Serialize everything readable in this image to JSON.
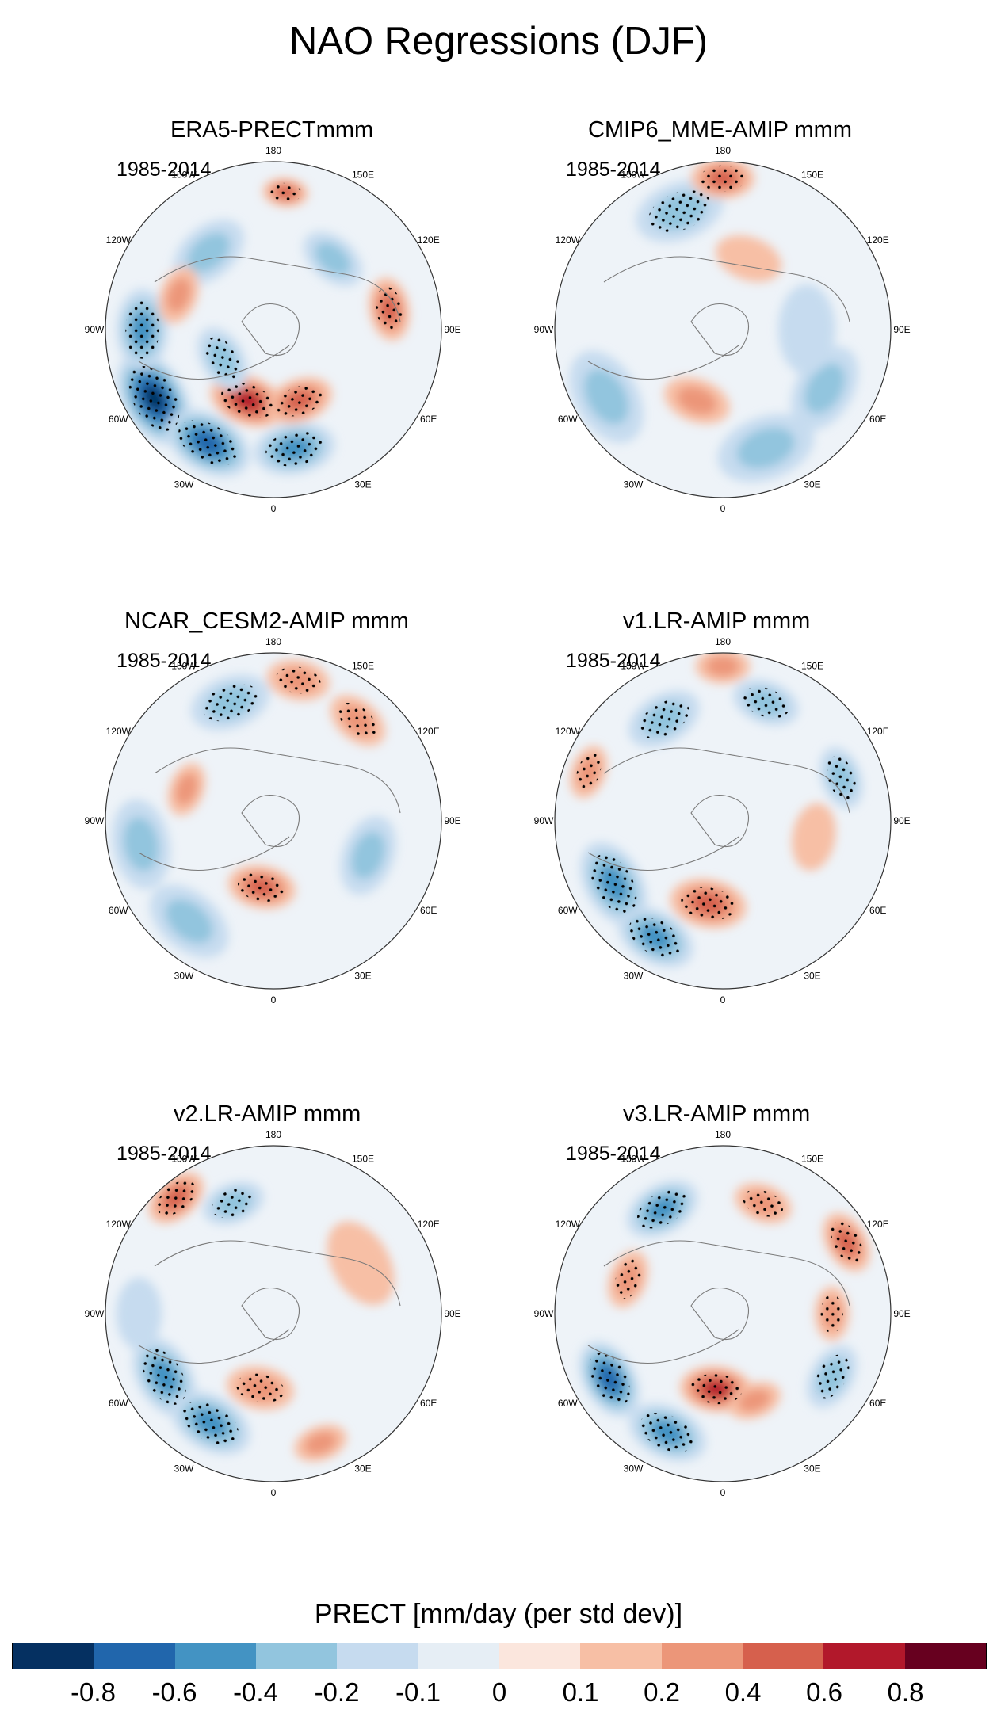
{
  "title": "NAO Regressions (DJF)",
  "panels": [
    {
      "title": "ERA5-PRECTmmm",
      "period": "1985-2014",
      "blobs": [
        {
          "lon": 300,
          "dist": 0.82,
          "val": -0.85,
          "r": 0.22
        },
        {
          "lon": 330,
          "dist": 0.78,
          "val": -0.7,
          "r": 0.2
        },
        {
          "lon": 270,
          "dist": 0.78,
          "val": -0.45,
          "r": 0.18
        },
        {
          "lon": 10,
          "dist": 0.72,
          "val": -0.5,
          "r": 0.18
        },
        {
          "lon": 340,
          "dist": 0.45,
          "val": 0.75,
          "r": 0.17
        },
        {
          "lon": 20,
          "dist": 0.45,
          "val": 0.55,
          "r": 0.15
        },
        {
          "lon": 300,
          "dist": 0.35,
          "val": -0.3,
          "r": 0.15
        },
        {
          "lon": 175,
          "dist": 0.82,
          "val": 0.5,
          "r": 0.1
        },
        {
          "lon": 100,
          "dist": 0.7,
          "val": 0.4,
          "r": 0.14
        },
        {
          "lon": 140,
          "dist": 0.55,
          "val": -0.25,
          "r": 0.15
        },
        {
          "lon": 220,
          "dist": 0.6,
          "val": -0.2,
          "r": 0.18
        },
        {
          "lon": 250,
          "dist": 0.6,
          "val": 0.25,
          "r": 0.13
        }
      ]
    },
    {
      "title": "CMIP6_MME-AMIP  mmm",
      "period": "1985-2014",
      "blobs": [
        {
          "lon": 200,
          "dist": 0.75,
          "val": -0.35,
          "r": 0.2
        },
        {
          "lon": 180,
          "dist": 0.9,
          "val": 0.4,
          "r": 0.14
        },
        {
          "lon": 300,
          "dist": 0.8,
          "val": -0.25,
          "r": 0.22
        },
        {
          "lon": 20,
          "dist": 0.75,
          "val": -0.2,
          "r": 0.22
        },
        {
          "lon": 60,
          "dist": 0.7,
          "val": -0.2,
          "r": 0.2
        },
        {
          "lon": 340,
          "dist": 0.45,
          "val": 0.25,
          "r": 0.15
        },
        {
          "lon": 160,
          "dist": 0.45,
          "val": 0.15,
          "r": 0.15
        },
        {
          "lon": 90,
          "dist": 0.5,
          "val": -0.12,
          "r": 0.2
        }
      ]
    },
    {
      "title": "NCAR_CESM2-AMIP  mmm",
      "period": "1985-2014",
      "blobs": [
        {
          "lon": 200,
          "dist": 0.75,
          "val": -0.35,
          "r": 0.18
        },
        {
          "lon": 170,
          "dist": 0.85,
          "val": 0.35,
          "r": 0.14
        },
        {
          "lon": 140,
          "dist": 0.78,
          "val": 0.3,
          "r": 0.14
        },
        {
          "lon": 280,
          "dist": 0.8,
          "val": -0.25,
          "r": 0.2
        },
        {
          "lon": 320,
          "dist": 0.78,
          "val": -0.2,
          "r": 0.2
        },
        {
          "lon": 350,
          "dist": 0.4,
          "val": 0.4,
          "r": 0.15
        },
        {
          "lon": 250,
          "dist": 0.55,
          "val": 0.2,
          "r": 0.12
        },
        {
          "lon": 70,
          "dist": 0.6,
          "val": -0.2,
          "r": 0.18
        }
      ]
    },
    {
      "title": "v1.LR-AMIP  mmm",
      "period": "1985-2014",
      "blobs": [
        {
          "lon": 300,
          "dist": 0.75,
          "val": -0.45,
          "r": 0.2
        },
        {
          "lon": 330,
          "dist": 0.8,
          "val": -0.55,
          "r": 0.18
        },
        {
          "lon": 350,
          "dist": 0.5,
          "val": 0.5,
          "r": 0.17
        },
        {
          "lon": 210,
          "dist": 0.7,
          "val": -0.35,
          "r": 0.17
        },
        {
          "lon": 160,
          "dist": 0.75,
          "val": -0.3,
          "r": 0.15
        },
        {
          "lon": 110,
          "dist": 0.75,
          "val": -0.3,
          "r": 0.14
        },
        {
          "lon": 180,
          "dist": 0.92,
          "val": 0.25,
          "r": 0.12
        },
        {
          "lon": 250,
          "dist": 0.85,
          "val": 0.3,
          "r": 0.12
        },
        {
          "lon": 80,
          "dist": 0.55,
          "val": 0.12,
          "r": 0.15
        }
      ]
    },
    {
      "title": "v2.LR-AMIP  mmm",
      "period": "1985-2014",
      "blobs": [
        {
          "lon": 300,
          "dist": 0.75,
          "val": -0.5,
          "r": 0.19
        },
        {
          "lon": 330,
          "dist": 0.75,
          "val": -0.45,
          "r": 0.19
        },
        {
          "lon": 350,
          "dist": 0.45,
          "val": 0.35,
          "r": 0.15
        },
        {
          "lon": 220,
          "dist": 0.9,
          "val": 0.4,
          "r": 0.14
        },
        {
          "lon": 200,
          "dist": 0.7,
          "val": -0.3,
          "r": 0.14
        },
        {
          "lon": 270,
          "dist": 0.8,
          "val": -0.15,
          "r": 0.16
        },
        {
          "lon": 120,
          "dist": 0.6,
          "val": 0.15,
          "r": 0.2
        },
        {
          "lon": 20,
          "dist": 0.82,
          "val": 0.2,
          "r": 0.12
        }
      ]
    },
    {
      "title": "v3.LR-AMIP  mmm",
      "period": "1985-2014",
      "blobs": [
        {
          "lon": 300,
          "dist": 0.78,
          "val": -0.75,
          "r": 0.18
        },
        {
          "lon": 335,
          "dist": 0.78,
          "val": -0.5,
          "r": 0.18
        },
        {
          "lon": 355,
          "dist": 0.45,
          "val": 0.65,
          "r": 0.16
        },
        {
          "lon": 210,
          "dist": 0.72,
          "val": -0.4,
          "r": 0.17
        },
        {
          "lon": 120,
          "dist": 0.85,
          "val": 0.5,
          "r": 0.14
        },
        {
          "lon": 160,
          "dist": 0.7,
          "val": 0.3,
          "r": 0.13
        },
        {
          "lon": 250,
          "dist": 0.6,
          "val": 0.3,
          "r": 0.13
        },
        {
          "lon": 60,
          "dist": 0.75,
          "val": -0.3,
          "r": 0.15
        },
        {
          "lon": 90,
          "dist": 0.65,
          "val": 0.35,
          "r": 0.12
        },
        {
          "lon": 20,
          "dist": 0.55,
          "val": 0.2,
          "r": 0.12
        }
      ]
    }
  ],
  "longitude_labels": [
    "180",
    "150E",
    "120E",
    "90E",
    "60E",
    "30E",
    "0",
    "30W",
    "60W",
    "90W",
    "120W",
    "150W"
  ],
  "colorbar": {
    "title": "PRECT [mm/day (per std dev)]",
    "tick_labels": [
      "-0.8",
      "-0.6",
      "-0.4",
      "-0.2",
      "-0.1",
      "0",
      "0.1",
      "0.2",
      "0.4",
      "0.6",
      "0.8"
    ],
    "levels": [
      -0.8,
      -0.6,
      -0.4,
      -0.2,
      -0.1,
      0,
      0.1,
      0.2,
      0.4,
      0.6,
      0.8
    ],
    "colors": [
      "#053061",
      "#2166ac",
      "#4393c3",
      "#92c5de",
      "#c6dbef",
      "#e6eef5",
      "#fbe6dd",
      "#f7bfa5",
      "#ec9679",
      "#d6604d",
      "#b2182b",
      "#67001f"
    ]
  }
}
